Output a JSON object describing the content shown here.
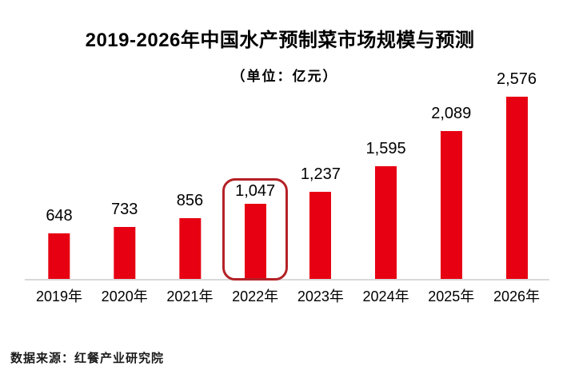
{
  "title": "2019-2026年中国水产预制菜市场规模与预测",
  "subtitle": "（单位：亿元）",
  "source_note": "数据来源：红餐产业研究院",
  "colors": {
    "bar": "#e60012",
    "highlight_border": "#b42126",
    "axis_line": "#d9d9d9",
    "text": "#000000"
  },
  "chart_data": {
    "type": "bar",
    "title": "2019-2026年中国水产预制菜市场规模与预测",
    "unit_label": "（单位：亿元）",
    "categories": [
      "2019年",
      "2020年",
      "2021年",
      "2022年",
      "2023年",
      "2024年",
      "2025年",
      "2026年"
    ],
    "values": [
      648,
      733,
      856,
      1047,
      1237,
      1595,
      2089,
      2576
    ],
    "value_labels": [
      "648",
      "733",
      "856",
      "1,047",
      "1,237",
      "1,595",
      "2,089",
      "2,576"
    ],
    "highlight_index": 3,
    "highlighted_category": "2022年",
    "bar_color": "#e60012",
    "xlabel": "",
    "ylabel": "",
    "ylim": [
      0,
      2800
    ],
    "grid": false,
    "legend": false,
    "source": "数据来源：红餐产业研究院"
  }
}
